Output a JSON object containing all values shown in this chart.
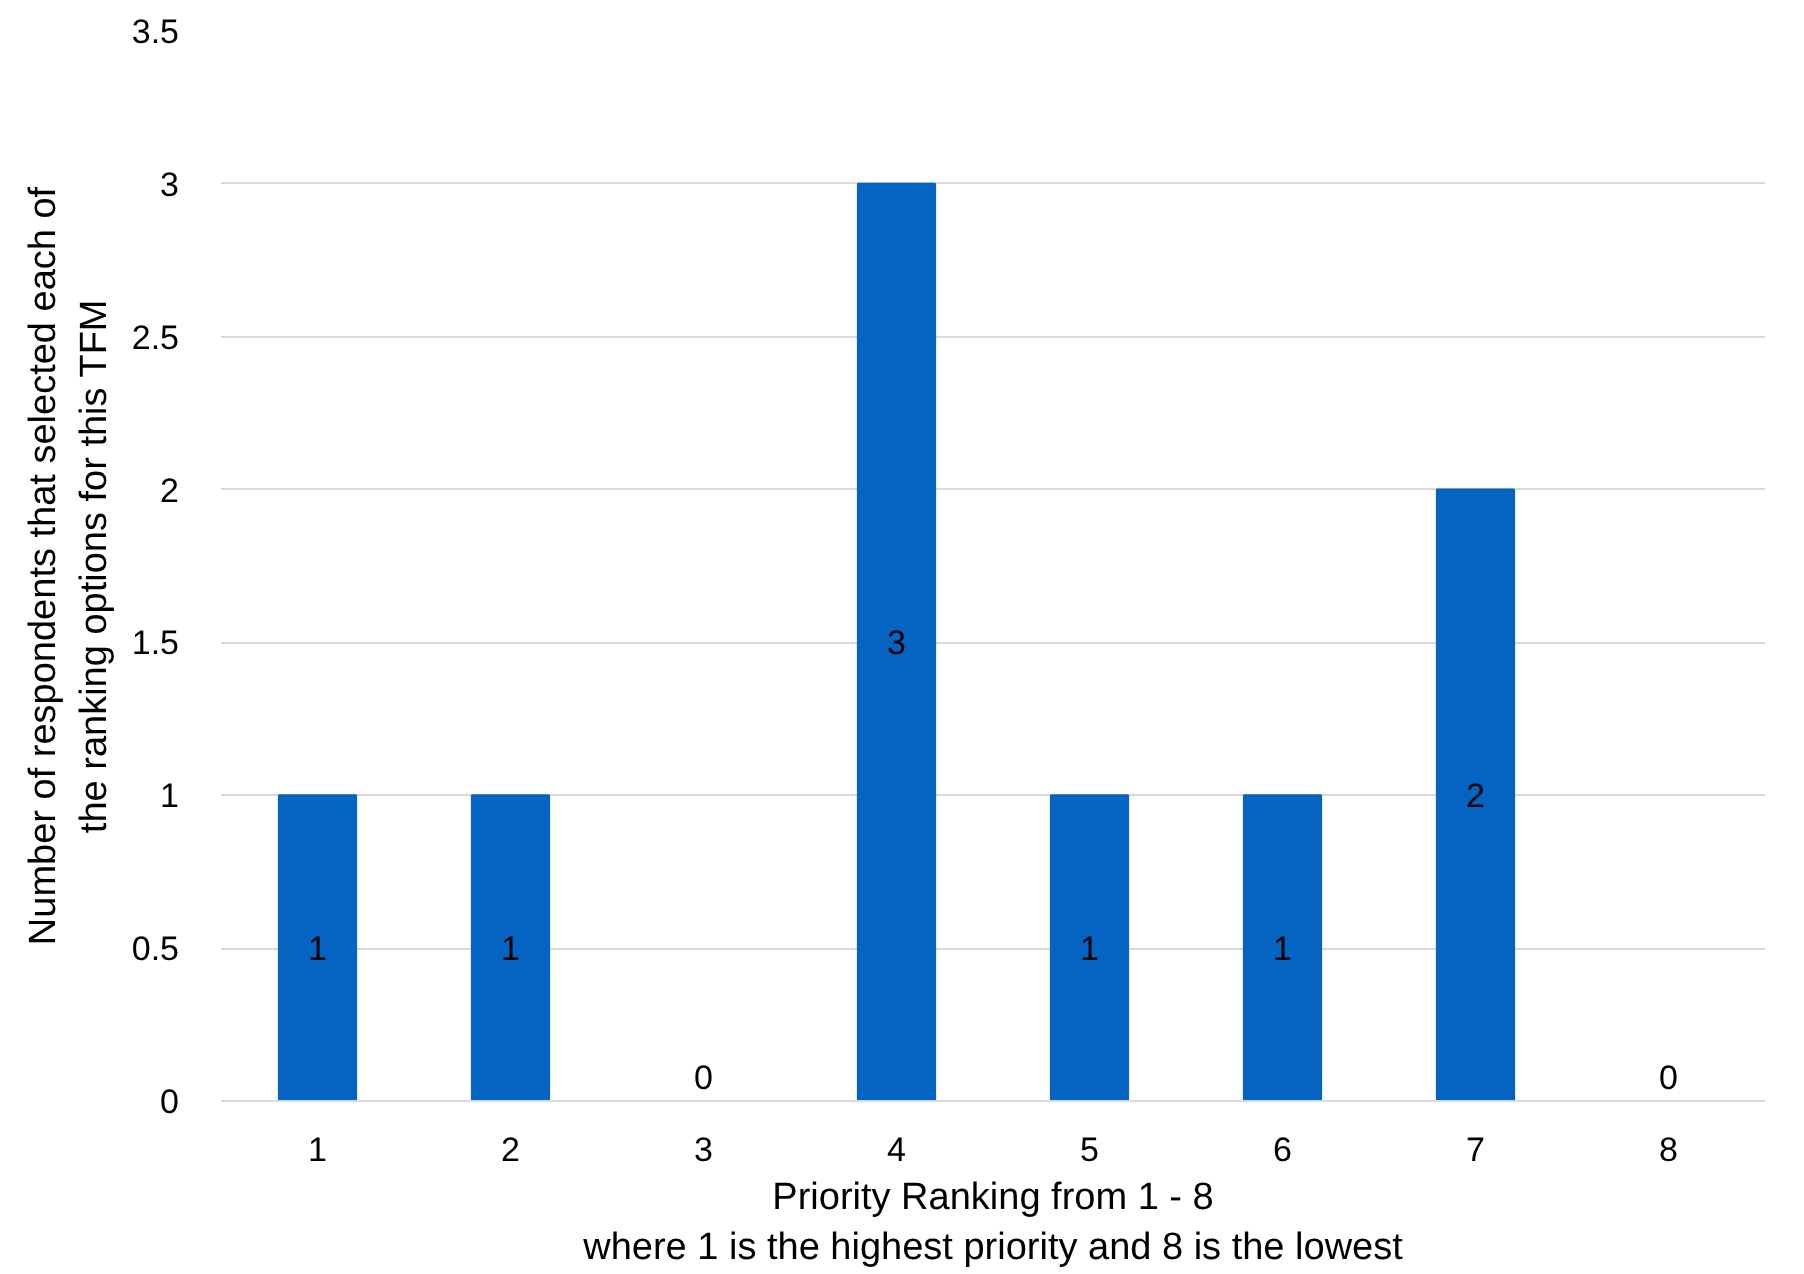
{
  "chart_data": {
    "type": "bar",
    "xlabel": "Priority Ranking from 1 - 8\nwhere 1 is the highest priority and 8 is the lowest",
    "ylabel": "Number of respondents that selected each of\nthe ranking options for this TFM",
    "categories": [
      "1",
      "2",
      "3",
      "4",
      "5",
      "6",
      "7",
      "8"
    ],
    "values": [
      1,
      1,
      0,
      3,
      1,
      1,
      2,
      0
    ],
    "color": "#0563c1",
    "ylim": [
      0,
      3.5
    ],
    "yticks": [
      0,
      0.5,
      1,
      1.5,
      2,
      2.5,
      3,
      3.5
    ],
    "grid": "y",
    "data_labels": true
  }
}
